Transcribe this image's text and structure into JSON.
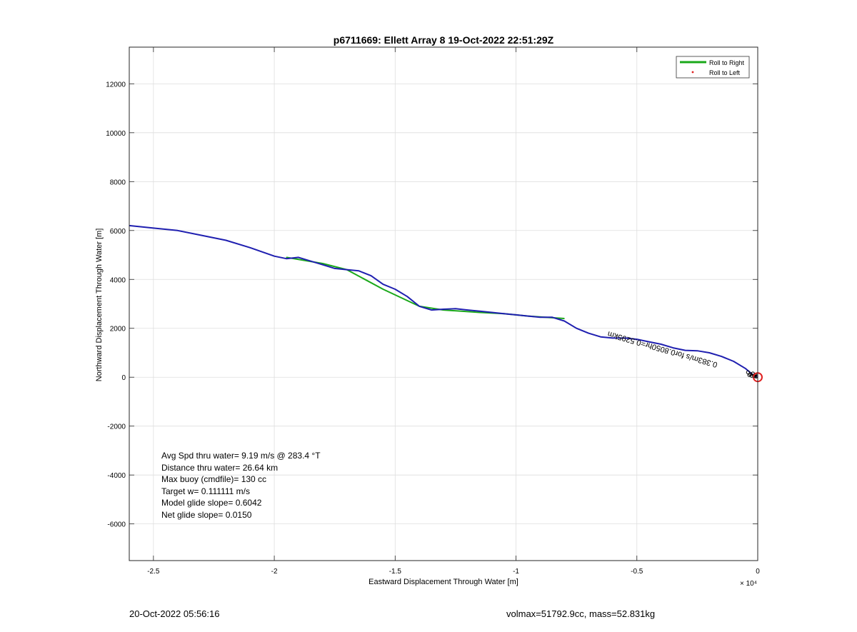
{
  "chart_data": {
    "type": "line",
    "title": "p6711669: Ellett Array 8 19-Oct-2022 22:51:29Z",
    "xlabel": "Eastward Displacement Through Water [m]",
    "ylabel": "Northward Displacement Through Water [m]",
    "x_exponent_label": "× 10⁴",
    "xlim": [
      -26000,
      0
    ],
    "ylim": [
      -7500,
      13500
    ],
    "xticks": [
      -25000,
      -20000,
      -15000,
      -10000,
      -5000,
      0
    ],
    "xtick_labels": [
      "-2.5",
      "-2",
      "-1.5",
      "-1",
      "-0.5",
      "0"
    ],
    "yticks": [
      -6000,
      -4000,
      -2000,
      0,
      2000,
      4000,
      6000,
      8000,
      10000,
      12000
    ],
    "ytick_labels": [
      "-6000",
      "-4000",
      "-2000",
      "0",
      "2000",
      "4000",
      "6000",
      "8000",
      "10000",
      "12000"
    ],
    "grid": true,
    "legend_position": "top-right",
    "legend": [
      {
        "label": "Roll to Right",
        "color": "#1aa81a",
        "marker": "line"
      },
      {
        "label": "Roll to Left",
        "color": "#e02020",
        "marker": "dot"
      }
    ],
    "series": [
      {
        "name": "Roll to Right",
        "color": "#1aa81a",
        "x": [
          -19500,
          -18000,
          -17000,
          -15500,
          -14000,
          -13000,
          -11500,
          -10500,
          -9500,
          -8800,
          -8000
        ],
        "y": [
          4900,
          4650,
          4400,
          3600,
          2900,
          2750,
          2650,
          2600,
          2500,
          2450,
          2400
        ]
      },
      {
        "color": "#1f1fb0",
        "x": [
          -26000,
          -25000,
          -24000,
          -23000,
          -22000,
          -21000,
          -20000,
          -19500,
          -19000,
          -18500,
          -18000,
          -17500,
          -17000,
          -16500,
          -16000,
          -15500,
          -15000,
          -14500,
          -14000,
          -13500,
          -13000,
          -12500,
          -12000,
          -11500,
          -11000,
          -10500,
          -10000,
          -9500,
          -9000,
          -8500,
          -8000,
          -7500,
          -7000,
          -6500,
          -6000,
          -5500,
          -5000,
          -4500,
          -4000,
          -3500,
          -3000,
          -2500,
          -2000,
          -1500,
          -1000,
          -500,
          -200,
          0
        ],
        "y": [
          6200,
          6100,
          6000,
          5800,
          5600,
          5300,
          4950,
          4850,
          4900,
          4750,
          4600,
          4450,
          4400,
          4350,
          4150,
          3800,
          3600,
          3300,
          2900,
          2750,
          2780,
          2800,
          2750,
          2700,
          2650,
          2600,
          2550,
          2500,
          2450,
          2450,
          2300,
          2000,
          1800,
          1650,
          1600,
          1600,
          1550,
          1450,
          1350,
          1200,
          1100,
          1080,
          1000,
          850,
          650,
          350,
          100,
          0
        ]
      }
    ],
    "annotations": [
      {
        "text": "Avg Spd thru water=  9.19 m/s @ 283.4 °T"
      },
      {
        "text": "Distance thru water= 26.64 km"
      },
      {
        "text": "Max buoy (cmdfile)= 130 cc"
      },
      {
        "text": "Target w= 0.111111 m/s"
      },
      {
        "text": "Model glide slope= 0.6042"
      },
      {
        "text": "Net glide slope= 0.0150"
      }
    ],
    "rotated_label": "0.383m/s for0.8050hr=0.5295km"
  },
  "footer": {
    "date": "20-Oct-2022 05:56:16",
    "mass_info": "volmax=51792.9cc, mass=52.831kg"
  }
}
